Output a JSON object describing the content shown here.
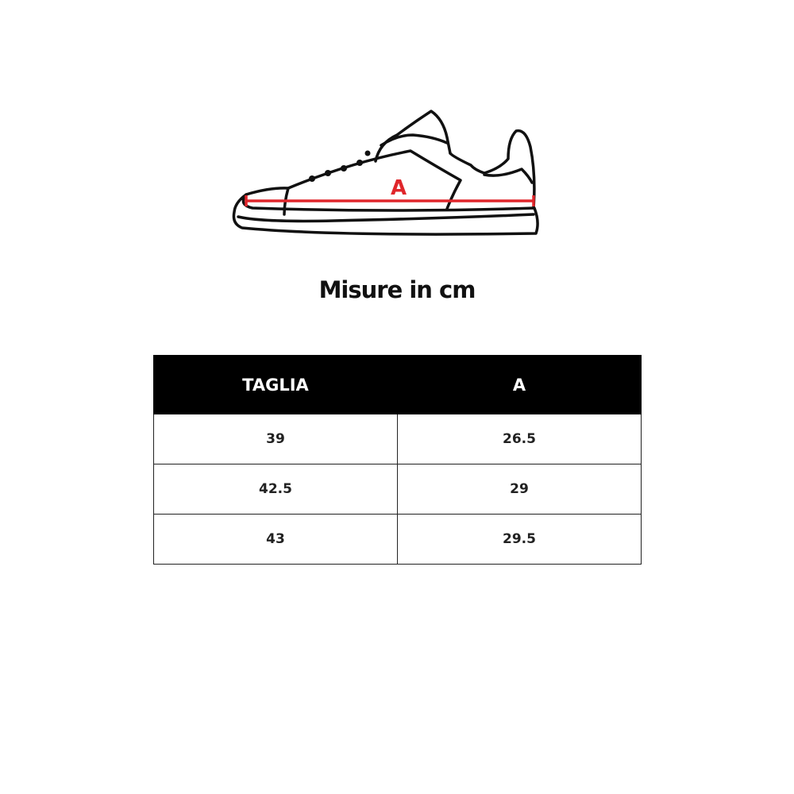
{
  "illustration": {
    "measure_label": "A",
    "measure_color": "#e0262b"
  },
  "title": "Misure in cm",
  "table": {
    "headers": [
      "TAGLIA",
      "A"
    ],
    "rows": [
      [
        "39",
        "26.5"
      ],
      [
        "42.5",
        "29"
      ],
      [
        "43",
        "29.5"
      ]
    ]
  }
}
